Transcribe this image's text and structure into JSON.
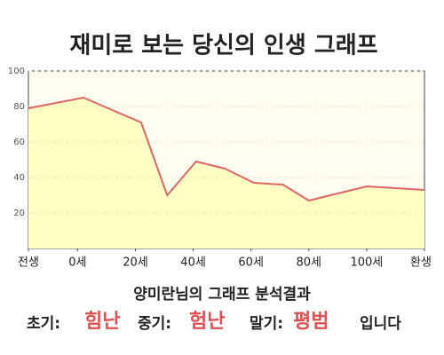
{
  "chart_data": {
    "type": "area",
    "title": "재미로 보는 당신의 인생 그래프",
    "x": [
      -17,
      2,
      22,
      31,
      41,
      51,
      61,
      71,
      80,
      100,
      120
    ],
    "values": [
      79,
      85,
      71,
      30,
      49,
      45,
      37,
      36,
      27,
      35,
      33
    ],
    "color": "#e06666",
    "fill": "#ffffc4",
    "xlim": [
      -17,
      120
    ],
    "xticks": [
      {
        "value": -17,
        "label": "전생"
      },
      {
        "value": 0,
        "label": "0세"
      },
      {
        "value": 20,
        "label": "20세"
      },
      {
        "value": 40,
        "label": "40세"
      },
      {
        "value": 60,
        "label": "60세"
      },
      {
        "value": 80,
        "label": "80세"
      },
      {
        "value": 100,
        "label": "100세"
      },
      {
        "value": 120,
        "label": "환생"
      }
    ],
    "ylim": [
      0,
      100
    ],
    "yticks": [
      20,
      40,
      60,
      80,
      100
    ],
    "grid": true
  },
  "analysis": {
    "heading": "양미란님의 그래프 분석결과",
    "items": [
      {
        "label": "초기:",
        "value": "힘난"
      },
      {
        "label": "중기:",
        "value": "험난"
      },
      {
        "label": "말기:",
        "value": "평범"
      }
    ],
    "suffix": "입니다"
  }
}
